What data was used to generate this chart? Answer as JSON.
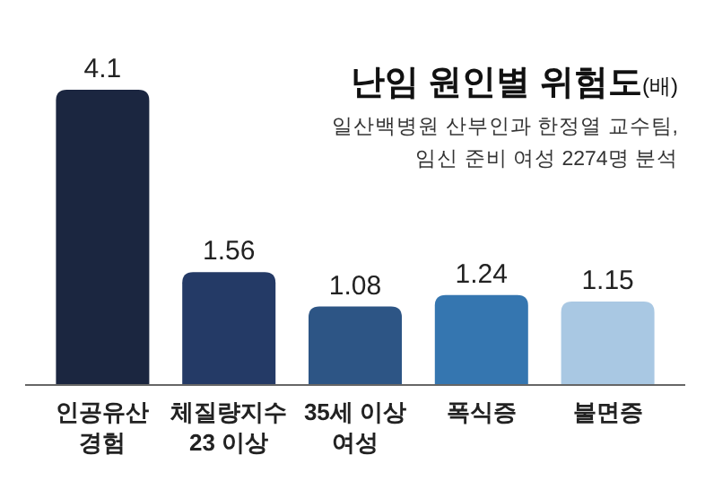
{
  "chart_data": {
    "type": "bar",
    "title": "난임 원인별 위험도",
    "ylabel": "(배)",
    "subtitle": "일산백병원 산부인과 한정열 교수팀,\n임신 준비 여성 2274명 분석",
    "categories": [
      "인공유산\n경험",
      "체질량지수\n23 이상",
      "35세 이상\n여성",
      "폭식증",
      "불면증"
    ],
    "values": [
      4.1,
      1.56,
      1.08,
      1.24,
      1.15
    ],
    "colors": [
      "#1b2640",
      "#243a66",
      "#2d5585",
      "#3576b0",
      "#a9c8e3"
    ],
    "data_labels": true
  }
}
